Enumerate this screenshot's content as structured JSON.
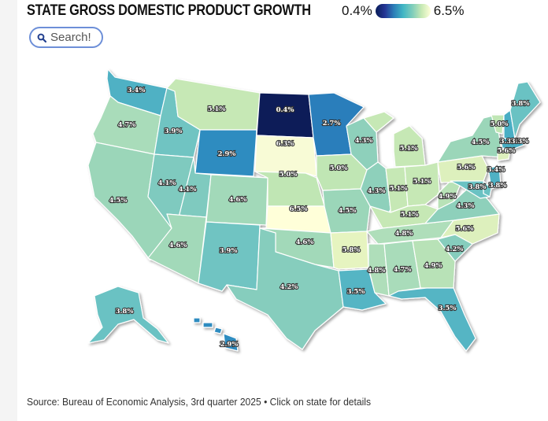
{
  "title": "STATE GROSS DOMESTIC PRODUCT GROWTH",
  "legend": {
    "min_label": "0.4%",
    "max_label": "6.5%"
  },
  "search": {
    "placeholder": "Search!"
  },
  "source": "Source: Bureau of Economic Analysis, 3rd quarter 2025 • Click on state for details",
  "colors": {
    "low": "#081d58",
    "high": "#ffffd9",
    "border": "#ffffff"
  },
  "states": [
    {
      "id": "WA",
      "value": "3.4%",
      "color": "#4fb1c4"
    },
    {
      "id": "OR",
      "value": "4.7%",
      "color": "#a9dcba"
    },
    {
      "id": "CA",
      "value": "4.5%",
      "color": "#9bd6b9"
    },
    {
      "id": "ID",
      "value": "3.9%",
      "color": "#6fc4c2"
    },
    {
      "id": "NV",
      "value": "4.1%",
      "color": "#7fcabf"
    },
    {
      "id": "MT",
      "value": "5.1%",
      "color": "#c6e8b5"
    },
    {
      "id": "WY",
      "value": "2.9%",
      "color": "#2f8cc0"
    },
    {
      "id": "UT",
      "value": "4.1%",
      "color": "#7fcabf"
    },
    {
      "id": "AZ",
      "value": "4.6%",
      "color": "#a2d9b9"
    },
    {
      "id": "CO",
      "value": "4.6%",
      "color": "#a2d9b9"
    },
    {
      "id": "NM",
      "value": "3.9%",
      "color": "#6fc4c2"
    },
    {
      "id": "ND",
      "value": "0.4%",
      "color": "#081d58"
    },
    {
      "id": "SD",
      "value": "6.3%",
      "color": "#f8fbd6"
    },
    {
      "id": "NE",
      "value": "5.0%",
      "color": "#c0e6b4"
    },
    {
      "id": "KS",
      "value": "6.5%",
      "color": "#ffffd9"
    },
    {
      "id": "OK",
      "value": "4.6%",
      "color": "#a2d9b9"
    },
    {
      "id": "TX",
      "value": "4.2%",
      "color": "#86cdbd"
    },
    {
      "id": "MN",
      "value": "2.7%",
      "color": "#2a7ebb"
    },
    {
      "id": "IA",
      "value": "5.0%",
      "color": "#c0e6b4"
    },
    {
      "id": "MO",
      "value": "4.5%",
      "color": "#9bd6b9"
    },
    {
      "id": "AR",
      "value": "5.8%",
      "color": "#e6f4c0"
    },
    {
      "id": "LA",
      "value": "3.5%",
      "color": "#55b5c4"
    },
    {
      "id": "WI",
      "value": "4.3%",
      "color": "#8ed0bb"
    },
    {
      "id": "IL",
      "value": "4.3%",
      "color": "#8ed0bb"
    },
    {
      "id": "MI",
      "value": "5.1%",
      "color": "#c6e8b5"
    },
    {
      "id": "IN",
      "value": "5.1%",
      "color": "#c6e8b5"
    },
    {
      "id": "OH",
      "value": "5.1%",
      "color": "#c6e8b5"
    },
    {
      "id": "KY",
      "value": "5.1%",
      "color": "#c6e8b5"
    },
    {
      "id": "TN",
      "value": "4.8%",
      "color": "#afdeba"
    },
    {
      "id": "MS",
      "value": "4.8%",
      "color": "#afdeba"
    },
    {
      "id": "AL",
      "value": "4.7%",
      "color": "#a9dcba"
    },
    {
      "id": "GA",
      "value": "4.9%",
      "color": "#b8e2b7"
    },
    {
      "id": "FL",
      "value": "3.5%",
      "color": "#55b5c4"
    },
    {
      "id": "SC",
      "value": "4.2%",
      "color": "#86cdbd"
    },
    {
      "id": "NC",
      "value": "5.6%",
      "color": "#ddf0bd"
    },
    {
      "id": "VA",
      "value": "4.3%",
      "color": "#8ed0bb"
    },
    {
      "id": "WV",
      "value": "4.9%",
      "color": "#b8e2b7"
    },
    {
      "id": "PA",
      "value": "5.6%",
      "color": "#ddf0bd"
    },
    {
      "id": "NY",
      "value": "4.5%",
      "color": "#9bd6b9"
    },
    {
      "id": "VT",
      "value": "5.0%",
      "color": "#c0e6b4"
    },
    {
      "id": "NH",
      "value": "3.3%",
      "color": "#4aaec4"
    },
    {
      "id": "ME",
      "value": "3.8%",
      "color": "#6bc2c3"
    },
    {
      "id": "MA",
      "value": "3.3%",
      "color": "#4aaec4"
    },
    {
      "id": "CT",
      "value": "5.6%",
      "color": "#ddf0bd"
    },
    {
      "id": "NJ",
      "value": "3.4%",
      "color": "#4fb1c4"
    },
    {
      "id": "DE",
      "value": "3.8%",
      "color": "#6bc2c3"
    },
    {
      "id": "MD",
      "value": "3.8%",
      "color": "#6bc2c3"
    },
    {
      "id": "AK",
      "value": "3.8%",
      "color": "#6bc2c3"
    },
    {
      "id": "HI",
      "value": "2.9%",
      "color": "#2f8cc0"
    }
  ]
}
